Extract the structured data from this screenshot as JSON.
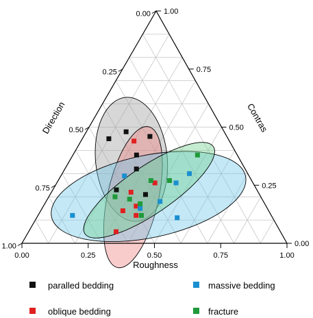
{
  "chart_data": {
    "type": "ternary-scatter",
    "axes": {
      "top": "Contras",
      "left": "Direction",
      "right": "Roughness"
    },
    "axis_labels": {
      "roughness": "Roughness",
      "direction": "Direction",
      "contras": "Contras"
    },
    "ticks": {
      "roughness": [
        "0.00",
        "0.25",
        "0.50",
        "0.75",
        "1.00"
      ],
      "direction": [
        "0.00",
        "0.25",
        "0.50",
        "0.75",
        "1.00"
      ],
      "contras": [
        "0.00",
        "0.25",
        "0.50",
        "0.75",
        "1.00"
      ]
    },
    "tick_values": [
      0,
      0.25,
      0.5,
      0.75,
      1.0
    ],
    "grid": true,
    "legend_position": "bottom",
    "series": [
      {
        "name": "paralled bedding",
        "color": "#111111",
        "ellipse_color": "#9a9a9a",
        "points": [
          {
            "roughness": 0.25,
            "direction": 0.29,
            "contras": 0.46
          },
          {
            "roughness": 0.24,
            "direction": 0.53,
            "contras": 0.23
          },
          {
            "roughness": 0.36,
            "direction": 0.43,
            "contras": 0.21
          },
          {
            "roughness": 0.1,
            "direction": 0.45,
            "contras": 0.45
          },
          {
            "roughness": 0.15,
            "direction": 0.37,
            "contras": 0.48
          },
          {
            "roughness": 0.24,
            "direction": 0.38,
            "contras": 0.38
          },
          {
            "roughness": 0.27,
            "direction": 0.41,
            "contras": 0.32
          }
        ]
      },
      {
        "name": "oblique bedding",
        "color": "#e02020",
        "ellipse_color": "#f08080",
        "points": [
          {
            "roughness": 0.37,
            "direction": 0.51,
            "contras": 0.12
          },
          {
            "roughness": 0.35,
            "direction": 0.49,
            "contras": 0.16
          },
          {
            "roughness": 0.33,
            "direction": 0.62,
            "contras": 0.05
          },
          {
            "roughness": 0.31,
            "direction": 0.55,
            "contras": 0.14
          },
          {
            "roughness": 0.37,
            "direction": 0.37,
            "contras": 0.26
          },
          {
            "roughness": 0.2,
            "direction": 0.36,
            "contras": 0.44
          },
          {
            "roughness": 0.3,
            "direction": 0.48,
            "contras": 0.22
          }
        ]
      },
      {
        "name": "massive bedding",
        "color": "#1a8fd0",
        "ellipse_color": "#6cc6e8",
        "points": [
          {
            "roughness": 0.13,
            "direction": 0.75,
            "contras": 0.12
          },
          {
            "roughness": 0.24,
            "direction": 0.47,
            "contras": 0.29
          },
          {
            "roughness": 0.37,
            "direction": 0.48,
            "contras": 0.15
          },
          {
            "roughness": 0.43,
            "direction": 0.39,
            "contras": 0.18
          },
          {
            "roughness": 0.48,
            "direction": 0.22,
            "contras": 0.3
          },
          {
            "roughness": 0.45,
            "direction": 0.29,
            "contras": 0.26
          },
          {
            "roughness": 0.53,
            "direction": 0.36,
            "contras": 0.11
          }
        ]
      },
      {
        "name": "fracture",
        "color": "#1f9a3a",
        "ellipse_color": "#6fcf8d",
        "points": [
          {
            "roughness": 0.25,
            "direction": 0.55,
            "contras": 0.2
          },
          {
            "roughness": 0.31,
            "direction": 0.5,
            "contras": 0.19
          },
          {
            "roughness": 0.35,
            "direction": 0.38,
            "contras": 0.27
          },
          {
            "roughness": 0.36,
            "direction": 0.47,
            "contras": 0.17
          },
          {
            "roughness": 0.39,
            "direction": 0.49,
            "contras": 0.12
          },
          {
            "roughness": 0.42,
            "direction": 0.31,
            "contras": 0.27
          },
          {
            "roughness": 0.47,
            "direction": 0.15,
            "contras": 0.38
          }
        ]
      }
    ]
  }
}
